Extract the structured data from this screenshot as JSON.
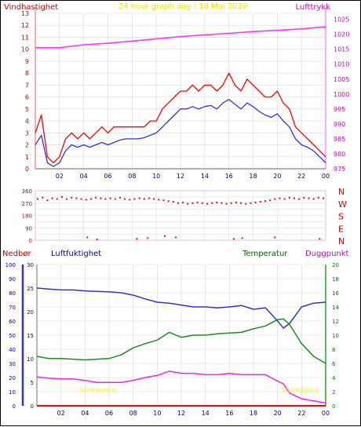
{
  "colors": {
    "wind": "#ff0000",
    "wind_avg": "#3333dd",
    "pressure": "#ff33ff",
    "humidity": "#3333cc",
    "temperature": "#228822",
    "dewpoint": "#ee22ee",
    "precip": "#ff0000",
    "header_title": "#e8e800",
    "sun_label": "#eeee44",
    "grid": "#d8d8d8"
  },
  "chart_data": [
    {
      "type": "line",
      "title": "24 hour graph day : 10 Mai 2020",
      "ylabel_left": "Vindhastighet",
      "ylabel_right": "Lufttrykk",
      "x_ticks": [
        "02",
        "04",
        "06",
        "08",
        "10",
        "12",
        "14",
        "16",
        "18",
        "20",
        "22",
        "00"
      ],
      "y_left_ticks": [
        "0",
        "1",
        "2",
        "3",
        "4",
        "5",
        "6",
        "7",
        "8",
        "9",
        "10",
        "11",
        "12",
        "13"
      ],
      "y_right_ticks": [
        "975",
        "980",
        "985",
        "990",
        "995",
        "1000",
        "1005",
        "1010",
        "1015",
        "1020",
        "1025"
      ],
      "ylim_left": [
        0,
        13
      ],
      "ylim_right": [
        975,
        1027
      ],
      "grid": true,
      "series": [
        {
          "name": "Lufttrykk",
          "axis": "right",
          "x": [
            0,
            2,
            4,
            6,
            8,
            10,
            12,
            14,
            16,
            18,
            20,
            22,
            24
          ],
          "values": [
            1015.5,
            1015.5,
            1016.5,
            1017.0,
            1017.7,
            1018.5,
            1019.2,
            1019.8,
            1020.3,
            1020.9,
            1021.3,
            1021.8,
            1022.5
          ]
        },
        {
          "name": "Vindhastighet (kast)",
          "axis": "left",
          "x": [
            0,
            0.5,
            1,
            1.5,
            2,
            2.5,
            3,
            3.5,
            4,
            4.5,
            5,
            5.5,
            6,
            6.5,
            7,
            7.5,
            8,
            8.5,
            9,
            9.5,
            10,
            10.5,
            11,
            11.5,
            12,
            12.5,
            13,
            13.5,
            14,
            14.5,
            15,
            15.5,
            16,
            16.5,
            17,
            17.5,
            18,
            18.5,
            19,
            19.5,
            20,
            20.5,
            21,
            21.5,
            22,
            22.5,
            23,
            23.5,
            24
          ],
          "values": [
            3,
            4.5,
            1,
            0.5,
            1,
            2.5,
            3,
            2.5,
            3,
            2.5,
            3,
            3.5,
            3,
            3.5,
            3.5,
            3.5,
            3.5,
            3.5,
            3.5,
            4,
            4,
            5,
            5.5,
            6,
            6.5,
            6.5,
            7,
            6.5,
            7,
            7,
            6.5,
            7,
            8,
            7,
            6.5,
            7.5,
            7,
            6.5,
            6,
            6,
            6.5,
            5.5,
            5,
            3.5,
            3,
            2.5,
            2,
            1.5,
            1
          ]
        },
        {
          "name": "Vindhastighet (middel)",
          "axis": "left",
          "x": [
            0,
            0.5,
            1,
            1.5,
            2,
            2.5,
            3,
            3.5,
            4,
            4.5,
            5,
            5.5,
            6,
            6.5,
            7,
            7.5,
            8,
            8.5,
            9,
            9.5,
            10,
            10.5,
            11,
            11.5,
            12,
            12.5,
            13,
            13.5,
            14,
            14.5,
            15,
            15.5,
            16,
            16.5,
            17,
            17.5,
            18,
            18.5,
            19,
            19.5,
            20,
            20.5,
            21,
            21.5,
            22,
            22.5,
            23,
            23.5,
            24
          ],
          "values": [
            2,
            2.8,
            0.5,
            0.2,
            0.5,
            1.5,
            2,
            1.8,
            2,
            1.8,
            2,
            2.2,
            2,
            2.2,
            2.4,
            2.5,
            2.5,
            2.5,
            2.6,
            2.8,
            3,
            3.5,
            4,
            4.5,
            5,
            5,
            5.2,
            5,
            5.2,
            5.3,
            5,
            5.5,
            5.8,
            5.4,
            5,
            5.5,
            5.2,
            4.8,
            4.5,
            4.3,
            4.6,
            4,
            3.5,
            2.5,
            2,
            1.8,
            1.5,
            1,
            0.5
          ]
        }
      ]
    },
    {
      "type": "scatter",
      "title": "",
      "y_ticks_left": [
        "360",
        "315",
        "270",
        "225",
        "180",
        "135",
        "90",
        "45",
        "0"
      ],
      "y_labels_right": [
        "N",
        "W",
        "S",
        "E",
        "N"
      ],
      "ylim": [
        0,
        360
      ],
      "x_ticks": [
        "02",
        "04",
        "06",
        "08",
        "10",
        "12",
        "14",
        "16",
        "18",
        "20",
        "22",
        "00"
      ],
      "grid": true,
      "series": [
        {
          "name": "Vindretning",
          "axis": "left",
          "x": [
            0.2,
            0.6,
            1,
            1.4,
            1.8,
            2.2,
            2.6,
            3,
            3.4,
            3.8,
            4.2,
            4.6,
            5,
            5.4,
            5.8,
            6.2,
            6.6,
            7,
            7.4,
            7.8,
            8.2,
            8.6,
            9,
            9.4,
            9.8,
            10.2,
            10.6,
            11,
            11.4,
            11.8,
            12.2,
            12.6,
            13,
            13.4,
            13.8,
            14.2,
            14.6,
            15,
            15.4,
            15.8,
            16.2,
            16.6,
            17,
            17.4,
            17.8,
            18.2,
            18.6,
            19,
            19.4,
            19.8,
            20.2,
            20.6,
            21,
            21.4,
            21.8,
            22.2,
            22.6,
            23,
            23.4,
            23.8,
            4.3,
            5.1,
            8.4,
            9.3,
            10.7,
            11.6,
            16.4,
            17.1,
            19.8,
            23.5
          ],
          "values": [
            300,
            310,
            290,
            305,
            300,
            315,
            300,
            310,
            305,
            300,
            295,
            300,
            310,
            305,
            300,
            305,
            300,
            310,
            300,
            295,
            300,
            305,
            300,
            305,
            300,
            295,
            290,
            285,
            280,
            270,
            275,
            265,
            270,
            275,
            270,
            265,
            270,
            275,
            270,
            265,
            270,
            275,
            270,
            265,
            270,
            275,
            280,
            285,
            290,
            300,
            305,
            300,
            310,
            305,
            300,
            310,
            305,
            300,
            310,
            305,
            20,
            5,
            10,
            15,
            30,
            20,
            10,
            15,
            20,
            10
          ]
        }
      ]
    },
    {
      "type": "line",
      "title": "",
      "ylabel_left": "Nedbør",
      "ylabel_left2": "Luftfuktighet",
      "ylabel_right": "Temperatur",
      "ylabel_right2": "Duggpunkt",
      "annotations": [
        "Soloppgang",
        "Solnedgang"
      ],
      "x_ticks": [
        "02",
        "04",
        "06",
        "08",
        "10",
        "12",
        "14",
        "16",
        "18",
        "20",
        "22",
        "00"
      ],
      "y_ticks_precip": [
        "0",
        "10",
        "20",
        "30",
        "40",
        "50",
        "60",
        "70",
        "80",
        "90",
        "100"
      ],
      "y_ticks_humidity": [
        "0",
        "5",
        "10",
        "15",
        "20",
        "25",
        "30"
      ],
      "y_ticks_temp": [
        "0",
        "2",
        "4",
        "6",
        "8",
        "10",
        "12",
        "14",
        "16",
        "18",
        "20"
      ],
      "ylim_precip": [
        0,
        100
      ],
      "ylim_humidity": [
        0,
        30
      ],
      "ylim_temp": [
        0,
        20
      ],
      "grid": true,
      "series": [
        {
          "name": "Luftfuktighet",
          "axis": "humidity",
          "x": [
            0,
            1,
            2,
            3,
            4,
            5,
            6,
            7,
            8,
            9,
            10,
            11,
            12,
            13,
            14,
            15,
            16,
            17,
            18,
            19,
            20,
            20.5,
            21,
            22,
            23,
            24
          ],
          "values": [
            25,
            24.8,
            24.6,
            24.6,
            24.4,
            24.3,
            24.2,
            24,
            23.5,
            22.7,
            22,
            21.8,
            21.4,
            21,
            21,
            20.8,
            21,
            21.3,
            20.5,
            20.8,
            18,
            16.5,
            17.5,
            21,
            21.8,
            22
          ]
        },
        {
          "name": "Temperatur",
          "axis": "temp",
          "x": [
            0,
            1,
            2,
            3,
            4,
            5,
            6,
            7,
            8,
            9,
            10,
            11,
            12,
            13,
            14,
            15,
            16,
            17,
            18,
            19,
            20,
            20.5,
            21,
            22,
            23,
            24
          ],
          "values": [
            7,
            6.7,
            6.7,
            6.6,
            6.5,
            6.6,
            6.7,
            7.2,
            8.2,
            8.8,
            9.3,
            10.4,
            9.7,
            10,
            10,
            10.2,
            10.3,
            10.4,
            10.9,
            11.3,
            12.2,
            12.3,
            11.5,
            8.8,
            7,
            6
          ]
        },
        {
          "name": "Duggpunkt",
          "axis": "temp",
          "x": [
            0,
            1,
            2,
            3,
            4,
            5,
            6,
            7,
            8,
            9,
            10,
            11,
            12,
            13,
            14,
            15,
            16,
            17,
            18,
            19,
            20,
            20.5,
            21,
            22,
            23,
            24
          ],
          "values": [
            4.1,
            3.9,
            3.8,
            3.8,
            3.6,
            3.3,
            3.3,
            3.3,
            3.6,
            4,
            4.3,
            4.9,
            4.6,
            4.6,
            4.4,
            4.4,
            4.6,
            4.4,
            4.4,
            4.4,
            3.5,
            3.1,
            1.8,
            1,
            0.7,
            0.4
          ]
        },
        {
          "name": "Nedbør",
          "axis": "precip",
          "x": [
            0,
            24
          ],
          "values": [
            0,
            0
          ]
        }
      ]
    }
  ]
}
